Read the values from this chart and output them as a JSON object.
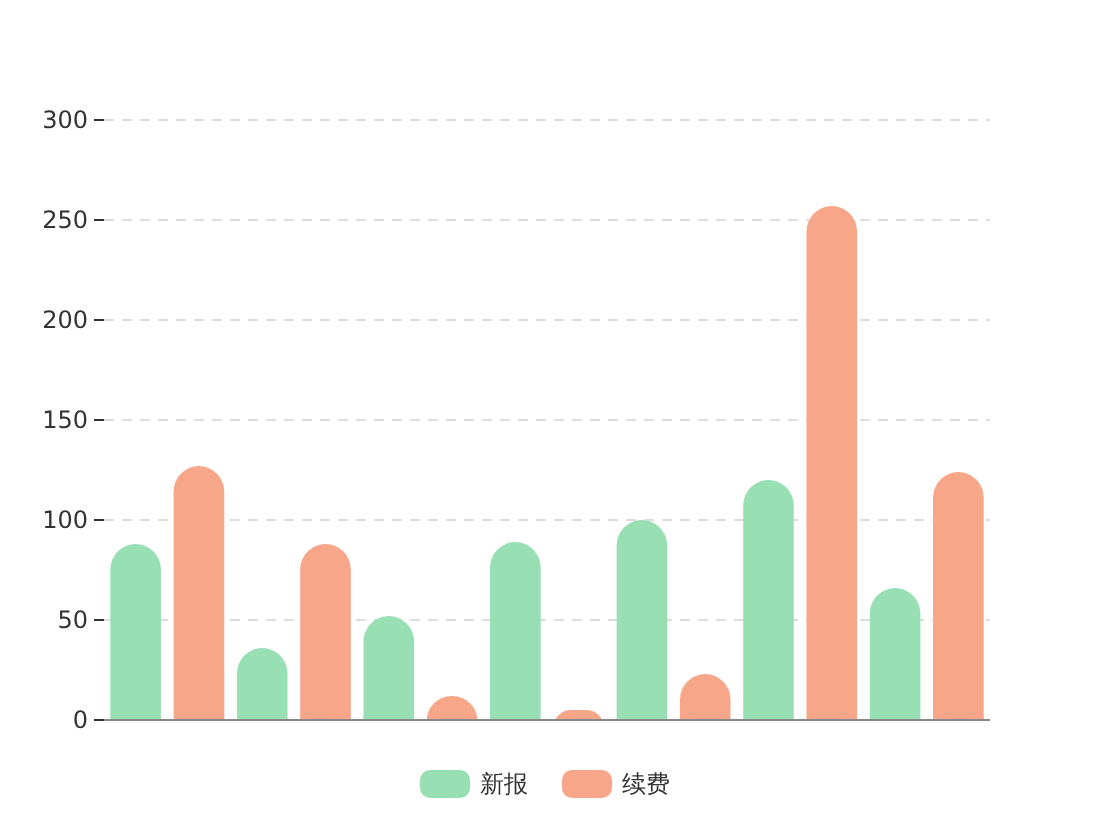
{
  "chart_data": {
    "type": "bar",
    "categories": [
      null,
      null,
      null,
      null,
      null,
      null,
      null
    ],
    "series": [
      {
        "name": "新报",
        "color": "#98e0b4",
        "values": [
          88,
          36,
          52,
          89,
          100,
          120,
          66
        ]
      },
      {
        "name": "续费",
        "color": "#f8a68a",
        "values": [
          127,
          88,
          12,
          5,
          23,
          257,
          124
        ]
      }
    ],
    "ylim": [
      0,
      300
    ],
    "yticks": [
      0,
      50,
      100,
      150,
      200,
      250,
      300
    ],
    "grid": "y",
    "legend": "bottom"
  }
}
